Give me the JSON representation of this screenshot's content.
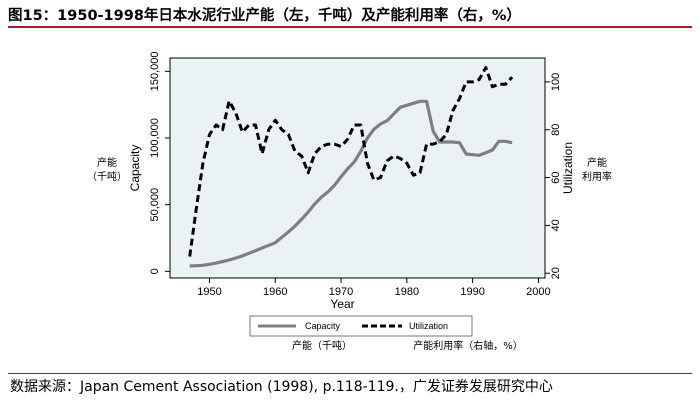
{
  "figure": {
    "title": "图15：1950-1998年日本水泥行业产能（左，千吨）及产能利用率（右，%）",
    "source": "数据来源：Japan Cement Association (1998), p.118-119.，广发证券发展研究中心",
    "colors": {
      "accent_rule": "#9c1f2e",
      "capacity": "#7f7f7f",
      "utilization": "#000000",
      "plot_region": "#eaf2f3"
    }
  },
  "chart_data": {
    "type": "line",
    "xlabel": "Year",
    "ylabel_left": "Capacity",
    "ylabel_right": "Utilization",
    "left_note": [
      "产能",
      "（千吨）"
    ],
    "right_note": [
      "产能",
      "利用率"
    ],
    "legend_caption_left": "产能（千吨）",
    "legend_caption_right": "产能利用率（右轴，%）",
    "x_ticks": [
      1950,
      1960,
      1970,
      1980,
      1990,
      2000
    ],
    "xlim": [
      1944,
      2001
    ],
    "ylim_left": [
      -5000,
      160000
    ],
    "yticks_left": [
      0,
      50000,
      100000,
      150000
    ],
    "ytick_labels_left": [
      "0",
      "50,000",
      "100,000",
      "150,000"
    ],
    "ylim_right": [
      18,
      110
    ],
    "yticks_right": [
      20,
      40,
      60,
      80,
      100
    ],
    "legend_position": "bottom-center",
    "grid": false,
    "series": [
      {
        "name": "Capacity",
        "axis": "left",
        "style": "solid",
        "x": [
          1947,
          1948,
          1949,
          1950,
          1951,
          1952,
          1953,
          1954,
          1955,
          1956,
          1957,
          1958,
          1959,
          1960,
          1961,
          1962,
          1963,
          1964,
          1965,
          1966,
          1967,
          1968,
          1969,
          1970,
          1971,
          1972,
          1973,
          1974,
          1975,
          1976,
          1977,
          1978,
          1979,
          1980,
          1981,
          1982,
          1983,
          1984,
          1985,
          1986,
          1987,
          1988,
          1989,
          1990,
          1991,
          1992,
          1993,
          1994,
          1995,
          1996
        ],
        "values": [
          4000,
          4200,
          4500,
          5300,
          6200,
          7300,
          8500,
          10000,
          11600,
          13500,
          15500,
          17500,
          19500,
          21500,
          25500,
          29500,
          34000,
          39000,
          44500,
          50500,
          55500,
          59500,
          64500,
          71000,
          77000,
          82000,
          90000,
          100000,
          106500,
          110500,
          113000,
          118000,
          123000,
          124500,
          126000,
          127500,
          127500,
          105000,
          97000,
          97000,
          97000,
          96500,
          88000,
          87500,
          87000,
          89000,
          91000,
          97500,
          97500,
          96500
        ]
      },
      {
        "name": "Utilization",
        "axis": "right",
        "style": "dashed",
        "x": [
          1947,
          1948,
          1949,
          1950,
          1951,
          1952,
          1953,
          1954,
          1955,
          1956,
          1957,
          1958,
          1959,
          1960,
          1961,
          1962,
          1963,
          1964,
          1965,
          1966,
          1967,
          1968,
          1969,
          1970,
          1971,
          1972,
          1973,
          1974,
          1975,
          1976,
          1977,
          1978,
          1979,
          1980,
          1981,
          1982,
          1983,
          1984,
          1985,
          1986,
          1987,
          1988,
          1989,
          1990,
          1991,
          1992,
          1993,
          1994,
          1995,
          1996
        ],
        "values": [
          27,
          47,
          66,
          78,
          82,
          80,
          92,
          87,
          79,
          82,
          82,
          70,
          80,
          84,
          80,
          78,
          71,
          69,
          62,
          70,
          73,
          74,
          74,
          73,
          76,
          82,
          82,
          66,
          59,
          60,
          67,
          69,
          68,
          66,
          61,
          62,
          74,
          74,
          75,
          78,
          88,
          93,
          100,
          100,
          101,
          106,
          98,
          99,
          99,
          102
        ]
      }
    ]
  }
}
